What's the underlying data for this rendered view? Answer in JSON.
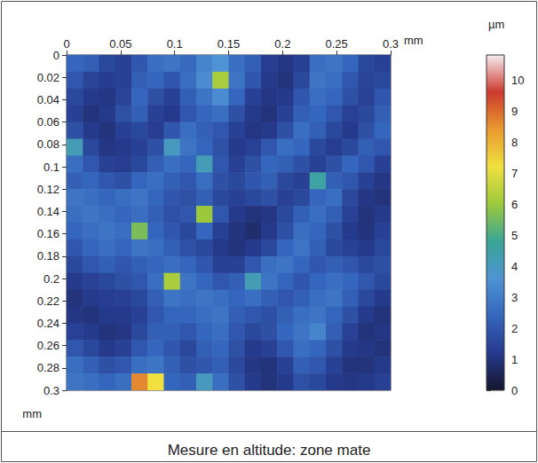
{
  "chart_data": {
    "type": "heatmap",
    "title": "Mesure en altitude: zone mate",
    "xlabel": "mm",
    "ylabel": "mm",
    "xlim": [
      0,
      0.3
    ],
    "xticks": [
      0,
      0.05,
      0.1,
      0.15,
      0.2,
      0.25,
      0.3
    ],
    "ylim": [
      0,
      0.3
    ],
    "yticks": [
      0,
      0.02,
      0.04,
      0.06,
      0.08,
      0.1,
      0.12,
      0.14,
      0.16,
      0.18,
      0.2,
      0.22,
      0.24,
      0.26,
      0.28,
      0.3
    ],
    "x_edges": [
      0,
      0.015,
      0.03,
      0.045,
      0.06,
      0.075,
      0.09,
      0.105,
      0.12,
      0.135,
      0.15,
      0.165,
      0.18,
      0.195,
      0.21,
      0.225,
      0.24,
      0.255,
      0.27,
      0.285,
      0.3
    ],
    "y_edges": [
      0,
      0.015,
      0.03,
      0.045,
      0.06,
      0.075,
      0.09,
      0.105,
      0.12,
      0.135,
      0.15,
      0.165,
      0.18,
      0.195,
      0.21,
      0.225,
      0.24,
      0.255,
      0.27,
      0.285,
      0.3
    ],
    "cells": [
      [
        2.4,
        2.2,
        1.6,
        1.4,
        2.0,
        2.6,
        2.8,
        2.5,
        3.2,
        3.6,
        2.6,
        2.2,
        1.3,
        1.1,
        1.4,
        2.6,
        2.8,
        2.4,
        1.6,
        1.4
      ],
      [
        2.0,
        1.5,
        1.3,
        1.4,
        2.2,
        2.4,
        2.0,
        2.6,
        3.4,
        6.2,
        2.8,
        2.0,
        1.2,
        1.0,
        1.6,
        2.8,
        2.6,
        2.0,
        1.5,
        1.6
      ],
      [
        1.6,
        1.2,
        1.1,
        1.5,
        2.4,
        1.8,
        1.4,
        2.2,
        2.8,
        3.4,
        2.4,
        1.4,
        1.1,
        1.2,
        2.0,
        2.6,
        2.4,
        1.8,
        1.4,
        2.0
      ],
      [
        1.4,
        1.0,
        1.2,
        1.8,
        2.2,
        1.4,
        1.2,
        2.0,
        2.4,
        2.6,
        1.8,
        1.2,
        1.0,
        1.4,
        2.2,
        2.4,
        2.0,
        1.4,
        1.6,
        2.2
      ],
      [
        1.8,
        1.2,
        1.0,
        1.4,
        1.6,
        1.3,
        2.0,
        2.6,
        2.2,
        2.0,
        1.4,
        1.1,
        1.2,
        1.8,
        2.6,
        2.2,
        1.6,
        1.2,
        1.8,
        2.4
      ],
      [
        4.2,
        1.6,
        1.1,
        1.2,
        1.4,
        1.8,
        4.0,
        2.8,
        2.4,
        1.8,
        1.2,
        1.4,
        2.0,
        2.6,
        2.4,
        1.6,
        1.3,
        1.6,
        2.2,
        2.0
      ],
      [
        2.6,
        2.0,
        1.4,
        1.3,
        1.6,
        2.2,
        2.6,
        2.4,
        4.2,
        2.0,
        1.4,
        1.8,
        2.4,
        2.2,
        1.8,
        1.4,
        1.8,
        2.4,
        2.0,
        1.4
      ],
      [
        2.2,
        2.4,
        2.0,
        1.8,
        2.4,
        2.6,
        2.2,
        2.0,
        2.6,
        1.8,
        1.6,
        2.0,
        2.2,
        1.6,
        1.4,
        4.6,
        2.2,
        2.0,
        1.4,
        1.1
      ],
      [
        2.8,
        2.6,
        2.4,
        2.6,
        2.8,
        2.4,
        2.0,
        1.8,
        2.2,
        1.6,
        1.4,
        1.6,
        1.8,
        1.4,
        1.6,
        2.4,
        2.6,
        1.6,
        1.1,
        1.0
      ],
      [
        2.6,
        2.8,
        2.6,
        2.4,
        2.6,
        2.2,
        1.8,
        2.0,
        6.0,
        2.0,
        1.2,
        1.0,
        1.1,
        1.6,
        2.2,
        2.6,
        2.2,
        1.4,
        1.0,
        1.2
      ],
      [
        2.4,
        2.6,
        2.8,
        2.6,
        5.6,
        2.4,
        2.0,
        1.6,
        2.4,
        1.4,
        1.0,
        0.8,
        1.2,
        1.8,
        2.6,
        2.4,
        1.8,
        1.2,
        1.0,
        1.4
      ],
      [
        2.0,
        2.4,
        2.6,
        2.4,
        2.8,
        2.6,
        2.2,
        1.8,
        1.6,
        1.2,
        1.0,
        1.2,
        1.6,
        2.4,
        2.8,
        2.2,
        1.6,
        1.4,
        1.2,
        1.6
      ],
      [
        1.6,
        2.0,
        2.2,
        2.0,
        2.2,
        2.4,
        2.6,
        2.4,
        2.0,
        1.4,
        1.4,
        2.0,
        2.6,
        2.8,
        2.4,
        2.0,
        2.2,
        2.0,
        1.6,
        1.8
      ],
      [
        1.2,
        1.4,
        1.6,
        1.8,
        2.0,
        2.6,
        6.2,
        2.8,
        2.4,
        2.0,
        2.2,
        4.2,
        2.8,
        2.4,
        2.0,
        2.4,
        2.6,
        2.4,
        2.0,
        1.6
      ],
      [
        1.0,
        1.2,
        1.3,
        1.4,
        1.6,
        2.2,
        2.8,
        2.6,
        2.8,
        2.6,
        2.4,
        2.6,
        2.2,
        2.0,
        2.2,
        2.6,
        2.8,
        2.2,
        1.6,
        1.2
      ],
      [
        1.1,
        1.0,
        1.2,
        1.2,
        1.4,
        2.0,
        2.4,
        2.4,
        2.6,
        2.8,
        2.2,
        2.0,
        1.8,
        2.2,
        2.6,
        2.8,
        2.4,
        1.8,
        1.2,
        1.0
      ],
      [
        1.4,
        1.2,
        1.0,
        1.1,
        1.6,
        2.2,
        2.2,
        2.0,
        2.4,
        2.6,
        2.0,
        1.6,
        1.8,
        2.4,
        2.8,
        3.2,
        2.2,
        1.4,
        1.0,
        1.1
      ],
      [
        2.0,
        1.6,
        1.2,
        1.4,
        2.0,
        2.4,
        2.0,
        1.6,
        2.2,
        2.4,
        1.8,
        1.2,
        1.4,
        2.0,
        2.6,
        2.4,
        1.8,
        1.2,
        1.1,
        1.0
      ],
      [
        2.6,
        2.2,
        1.8,
        2.0,
        2.6,
        2.8,
        2.2,
        1.8,
        2.0,
        2.2,
        1.6,
        1.1,
        1.0,
        1.4,
        2.2,
        2.0,
        1.4,
        1.0,
        1.0,
        1.2
      ],
      [
        2.8,
        2.6,
        2.4,
        2.6,
        8.6,
        7.2,
        2.4,
        2.2,
        4.0,
        2.6,
        1.8,
        1.2,
        1.0,
        1.2,
        1.8,
        1.6,
        1.2,
        1.1,
        1.2,
        1.4
      ]
    ],
    "colorbar_lim": [
      0,
      10.8
    ],
    "colorbar_ticks": [
      0,
      1,
      2,
      3,
      4,
      5,
      6,
      7,
      8,
      9,
      10
    ],
    "colorbar_label": "µm",
    "colors": [
      "#15152e",
      "#263a8c",
      "#3566bd",
      "#4e93d3",
      "#3aa596",
      "#9cc93c",
      "#f0e040",
      "#e89a30",
      "#cc3a2e",
      "#f6ecf0"
    ]
  }
}
